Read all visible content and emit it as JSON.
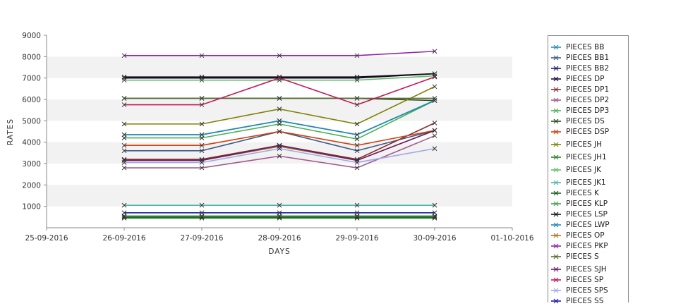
{
  "chart_data": {
    "type": "line",
    "xlabel": "DAYS",
    "ylabel": "RATES",
    "xticks": [
      "25-09-2016",
      "26-09-2016",
      "27-09-2016",
      "28-09-2016",
      "29-09-2016",
      "30-09-2016",
      "01-10-2016"
    ],
    "x": [
      "26-09-2016",
      "27-09-2016",
      "28-09-2016",
      "29-09-2016",
      "30-09-2016"
    ],
    "ylim": [
      0,
      9000
    ],
    "yticks": [
      1000,
      2000,
      3000,
      4000,
      5000,
      6000,
      7000,
      8000,
      9000
    ],
    "grid": "alternating horizontal bands",
    "legend_position": "right",
    "series": [
      {
        "name": "PIECES BB",
        "color": "#2a8fb0",
        "values": [
          4350,
          4350,
          5000,
          4350,
          5950
        ]
      },
      {
        "name": "PIECES BB1",
        "color": "#3d5a8a",
        "values": [
          3600,
          3600,
          4500,
          3600,
          4550
        ]
      },
      {
        "name": "PIECES BB2",
        "color": "#1a1a6e",
        "values": [
          520,
          520,
          520,
          520,
          520
        ]
      },
      {
        "name": "PIECES DP",
        "color": "#1a0a3a",
        "values": [
          7000,
          7000,
          7000,
          7000,
          7200
        ]
      },
      {
        "name": "PIECES DP1",
        "color": "#8b2d2d",
        "values": [
          3200,
          3200,
          3850,
          3200,
          4900
        ]
      },
      {
        "name": "PIECES DP2",
        "color": "#a05a8c",
        "values": [
          2800,
          2800,
          3350,
          2800,
          4300
        ]
      },
      {
        "name": "PIECES DP3",
        "color": "#4caf50",
        "values": [
          4200,
          4200,
          4850,
          4150,
          5950
        ]
      },
      {
        "name": "PIECES DS",
        "color": "#2d4a1e",
        "values": [
          6050,
          6050,
          6050,
          6050,
          5950
        ]
      },
      {
        "name": "PIECES DSP",
        "color": "#d04010",
        "values": [
          3850,
          3850,
          4500,
          3850,
          4550
        ]
      },
      {
        "name": "PIECES JH",
        "color": "#808000",
        "values": [
          4850,
          4850,
          5550,
          4850,
          6600
        ]
      },
      {
        "name": "PIECES JH1",
        "color": "#2e7d32",
        "values": [
          450,
          450,
          450,
          450,
          450
        ]
      },
      {
        "name": "PIECES JK",
        "color": "#66bb6a",
        "values": [
          6900,
          6900,
          6900,
          6900,
          7100
        ]
      },
      {
        "name": "PIECES JK1",
        "color": "#4db6ac",
        "values": [
          1050,
          1050,
          1050,
          1050,
          1050
        ]
      },
      {
        "name": "PIECES K",
        "color": "#1b5e20",
        "values": [
          500,
          500,
          500,
          500,
          500
        ]
      },
      {
        "name": "PIECES KLP",
        "color": "#43a047",
        "values": [
          550,
          550,
          550,
          550,
          550
        ]
      },
      {
        "name": "PIECES LSP",
        "color": "#111111",
        "values": [
          7050,
          7050,
          7050,
          7050,
          7200
        ]
      },
      {
        "name": "PIECES LWP",
        "color": "#1e88b5",
        "values": [
          4350,
          4350,
          5000,
          4350,
          5950
        ]
      },
      {
        "name": "PIECES OP",
        "color": "#9e7a20",
        "values": [
          3150,
          3150,
          3800,
          3150,
          4550
        ]
      },
      {
        "name": "PIECES PKP",
        "color": "#8e24aa",
        "values": [
          8050,
          8050,
          8050,
          8050,
          8250
        ]
      },
      {
        "name": "PIECES S",
        "color": "#556b2f",
        "values": [
          6050,
          6050,
          6050,
          6050,
          6050
        ]
      },
      {
        "name": "PIECES SJH",
        "color": "#6a1b6a",
        "values": [
          3150,
          3150,
          3850,
          3150,
          4550
        ]
      },
      {
        "name": "PIECES SP",
        "color": "#c2185b",
        "values": [
          5750,
          5750,
          7000,
          5750,
          7050
        ]
      },
      {
        "name": "PIECES SPS",
        "color": "#9fa8e8",
        "values": [
          3050,
          3050,
          3700,
          3050,
          3700
        ]
      },
      {
        "name": "PIECES SS",
        "color": "#1a1aa8",
        "values": [
          700,
          700,
          700,
          700,
          700
        ]
      }
    ]
  }
}
